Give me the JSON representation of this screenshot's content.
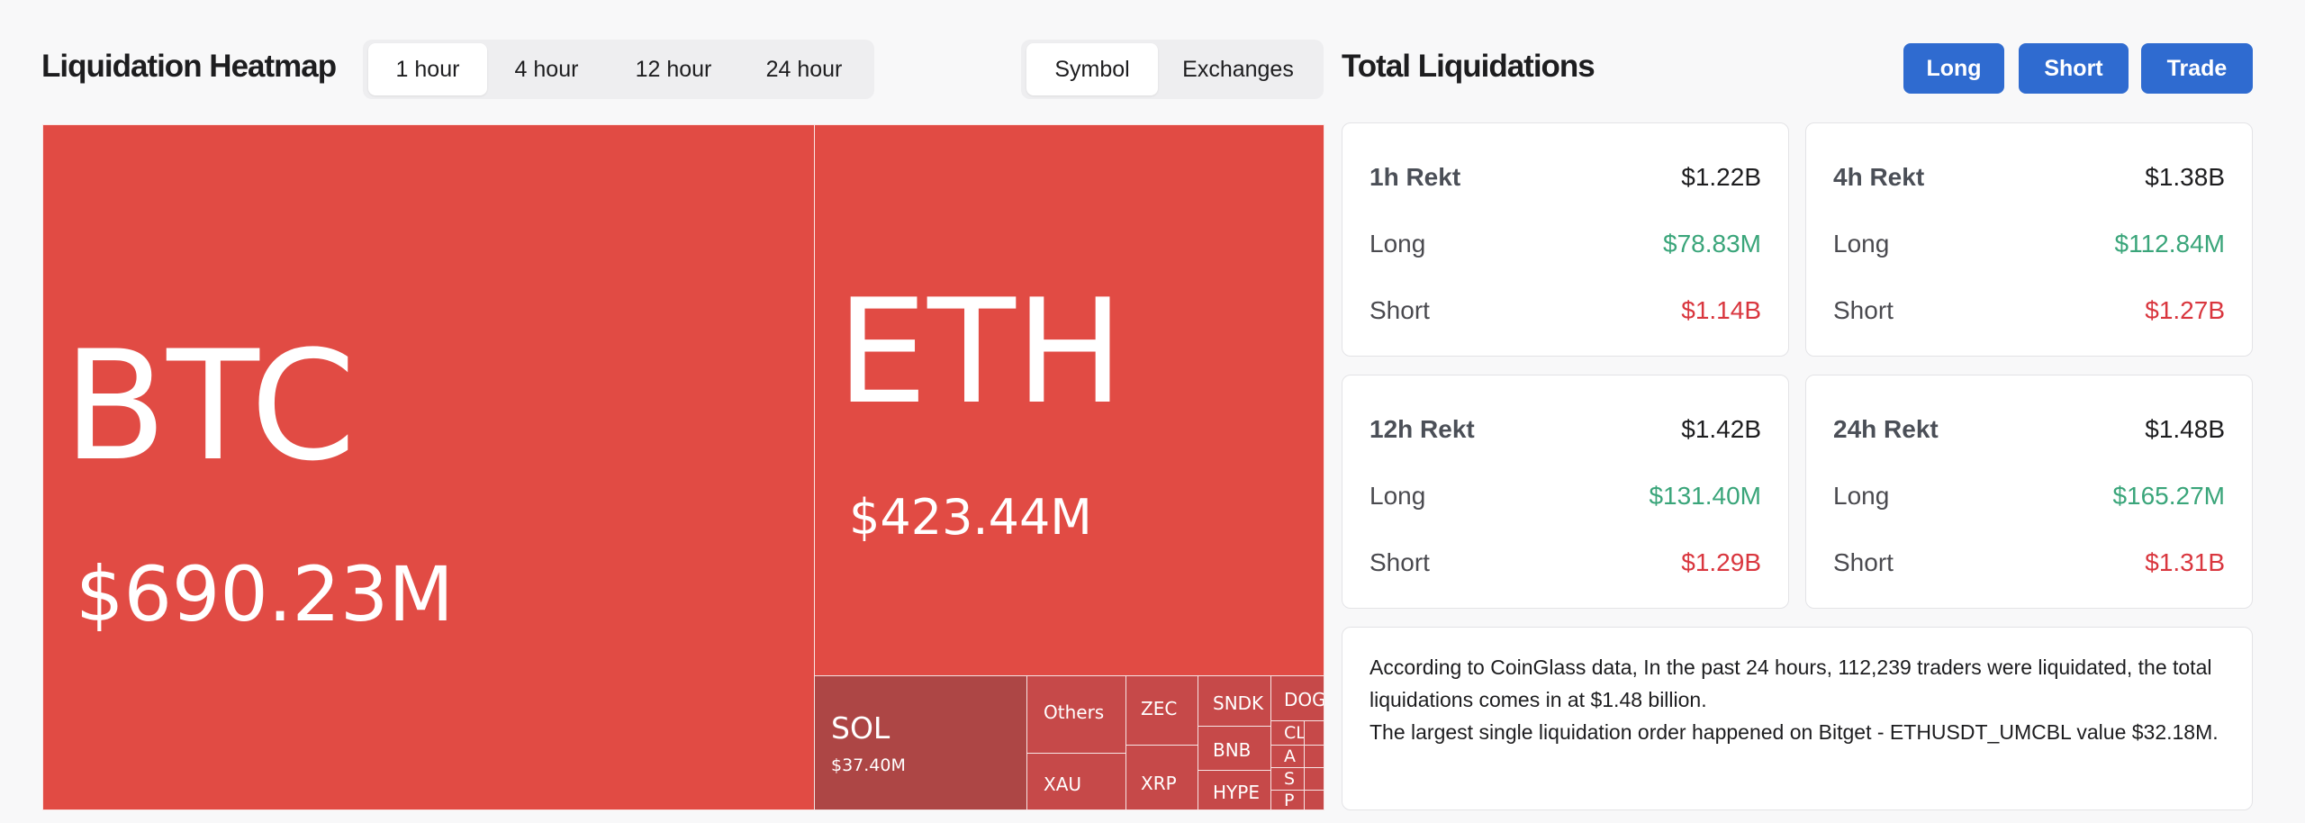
{
  "heatmap": {
    "title": "Liquidation Heatmap",
    "time_tabs": [
      "1 hour",
      "4 hour",
      "12 hour",
      "24 hour"
    ],
    "active_time_tab": 0,
    "view_tabs": [
      "Symbol",
      "Exchanges"
    ],
    "active_view_tab": 0,
    "tiles": {
      "btc": {
        "symbol": "BTC",
        "value": "$690.23M"
      },
      "eth": {
        "symbol": "ETH",
        "value": "$423.44M"
      },
      "sol": {
        "symbol": "SOL",
        "value": "$37.40M"
      },
      "others": "Others",
      "xau": "XAU",
      "zec": "ZEC",
      "xrp": "XRP",
      "sndk": "SNDK",
      "bnb": "BNB",
      "hype": "HYPE",
      "doge": "DOG",
      "tiny1": "CL",
      "tiny2": "A",
      "tiny3": "S",
      "tiny4": "P"
    }
  },
  "totals": {
    "title": "Total Liquidations",
    "buttons": {
      "long": "Long",
      "short": "Short",
      "trade": "Trade"
    },
    "row_labels": {
      "long": "Long",
      "short": "Short"
    },
    "cards": [
      {
        "label": "1h Rekt",
        "total": "$1.22B",
        "long": "$78.83M",
        "short": "$1.14B"
      },
      {
        "label": "4h Rekt",
        "total": "$1.38B",
        "long": "$112.84M",
        "short": "$1.27B"
      },
      {
        "label": "12h Rekt",
        "total": "$1.42B",
        "long": "$131.40M",
        "short": "$1.29B"
      },
      {
        "label": "24h Rekt",
        "total": "$1.48B",
        "long": "$165.27M",
        "short": "$1.31B"
      }
    ],
    "info_line1": "According to CoinGlass data, In the past 24 hours, 112,239 traders were liquidated, the total liquidations comes in at $1.48 billion.",
    "info_line2": "The largest single liquidation order happened on Bitget - ETHUSDT_UMCBL value $32.18M."
  },
  "colors": {
    "accent": "#2f6bd0",
    "liq_red": "#e14b44",
    "long_green": "#3aa57a",
    "short_red": "#d9363e"
  }
}
